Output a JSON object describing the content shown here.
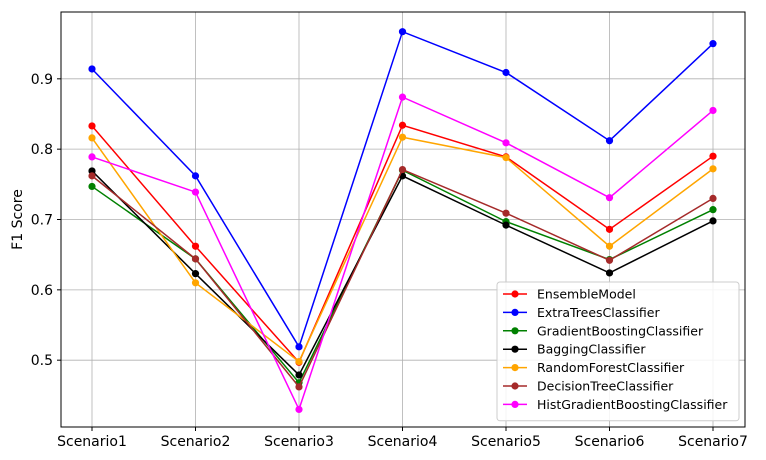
{
  "chart_data": {
    "type": "line",
    "title": "",
    "xlabel": "",
    "ylabel": "F1 Score",
    "categories": [
      "Scenario1",
      "Scenario2",
      "Scenario3",
      "Scenario4",
      "Scenario5",
      "Scenario6",
      "Scenario7"
    ],
    "ylim": [
      0.405,
      0.995
    ],
    "yticks": [
      0.5,
      0.6,
      0.7,
      0.8,
      0.9
    ],
    "grid": true,
    "legend_position": "lower-right",
    "series": [
      {
        "name": "EnsembleModel",
        "color": "#ff0000",
        "values": [
          0.833,
          0.662,
          0.497,
          0.834,
          0.789,
          0.686,
          0.79
        ]
      },
      {
        "name": "ExtraTreesClassifier",
        "color": "#0000ff",
        "values": [
          0.914,
          0.762,
          0.519,
          0.967,
          0.909,
          0.812,
          0.95
        ]
      },
      {
        "name": "GradientBoostingClassifier",
        "color": "#008000",
        "values": [
          0.747,
          0.644,
          0.468,
          0.77,
          0.697,
          0.643,
          0.714
        ]
      },
      {
        "name": "BaggingClassifier",
        "color": "#000000",
        "values": [
          0.769,
          0.623,
          0.479,
          0.762,
          0.692,
          0.624,
          0.698
        ]
      },
      {
        "name": "RandomForestClassifier",
        "color": "#ffa500",
        "values": [
          0.816,
          0.61,
          0.498,
          0.817,
          0.788,
          0.662,
          0.772
        ]
      },
      {
        "name": "DecisionTreeClassifier",
        "color": "#a52a2a",
        "values": [
          0.762,
          0.644,
          0.462,
          0.771,
          0.709,
          0.642,
          0.73
        ]
      },
      {
        "name": "HistGradientBoostingClassifier",
        "color": "#ff00ff",
        "values": [
          0.789,
          0.739,
          0.43,
          0.874,
          0.809,
          0.731,
          0.855
        ]
      }
    ]
  }
}
